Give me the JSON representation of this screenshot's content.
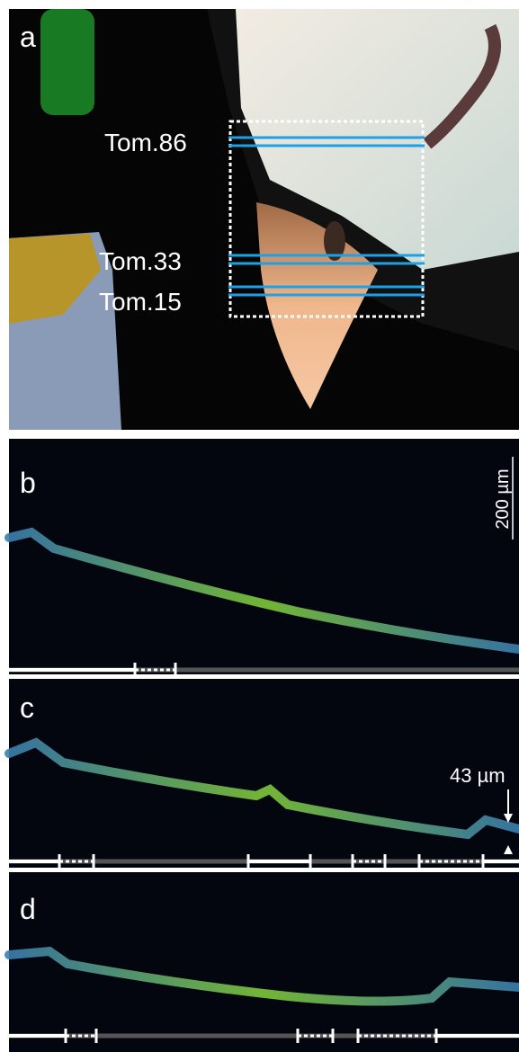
{
  "panels": [
    {
      "label": "a",
      "annotations": [
        "Tom.86",
        "Tom.33",
        "Tom.15"
      ]
    },
    {
      "label": "b",
      "scale_bar": "200 µm"
    },
    {
      "label": "c",
      "annotation": "43 µm"
    },
    {
      "label": "d"
    }
  ]
}
